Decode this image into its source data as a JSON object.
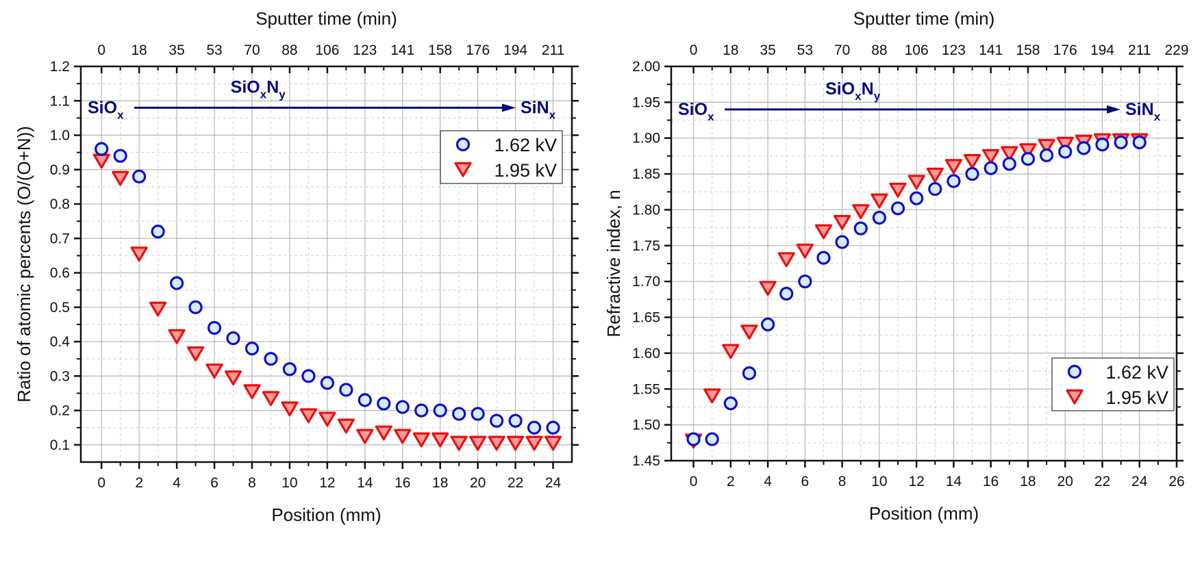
{
  "chart_data": [
    {
      "type": "scatter",
      "title": "",
      "xlabel": "Position (mm)",
      "ylabel": "Ratio of atomic percents (O/(O+N))",
      "x2label": "Sputter time (min)",
      "xlim": [
        -1.1,
        25.0
      ],
      "ylim": [
        0.05,
        1.2
      ],
      "xticks": [
        0,
        2,
        4,
        6,
        8,
        10,
        12,
        14,
        16,
        18,
        20,
        22,
        24
      ],
      "yticks": [
        "0.1",
        "0.2",
        "0.3",
        "0.4",
        "0.5",
        "0.6",
        "0.7",
        "0.8",
        "0.9",
        "1.0",
        "1.1",
        "1.2"
      ],
      "x2ticks": [
        "0",
        "18",
        "35",
        "53",
        "70",
        "88",
        "106",
        "123",
        "141",
        "158",
        "176",
        "194",
        "211"
      ],
      "grid": true,
      "legend_position": "top-right",
      "annotation": {
        "start": {
          "base": "SiO",
          "sub": "x"
        },
        "middle": {
          "base1": "SiO",
          "sub1": "x",
          "base2": "N",
          "sub2": "y"
        },
        "end": {
          "base": "SiN",
          "sub": "x"
        },
        "y": 1.08
      },
      "x": [
        0,
        1,
        2,
        3,
        4,
        5,
        6,
        7,
        8,
        9,
        10,
        11,
        12,
        13,
        14,
        15,
        16,
        17,
        18,
        19,
        20,
        21,
        22,
        23,
        24
      ],
      "series": [
        {
          "name": "1.62 kV",
          "marker": "circle",
          "values": [
            0.96,
            0.94,
            0.88,
            0.72,
            0.57,
            0.5,
            0.44,
            0.41,
            0.38,
            0.35,
            0.32,
            0.3,
            0.28,
            0.26,
            0.23,
            0.22,
            0.21,
            0.2,
            0.2,
            0.19,
            0.19,
            0.17,
            0.17,
            0.15,
            0.15
          ]
        },
        {
          "name": "1.95 kV",
          "marker": "triangle-down",
          "values": [
            0.93,
            0.88,
            0.66,
            0.5,
            0.42,
            0.37,
            0.32,
            0.3,
            0.26,
            0.24,
            0.21,
            0.19,
            0.18,
            0.16,
            0.13,
            0.14,
            0.13,
            0.12,
            0.12,
            0.11,
            0.11,
            0.11,
            0.11,
            0.11,
            0.11
          ]
        }
      ]
    },
    {
      "type": "scatter",
      "title": "",
      "xlabel": "Position (mm)",
      "ylabel": "Refractive index, n",
      "x2label": "Sputter time (min)",
      "xlim": [
        -1.2,
        26.0
      ],
      "ylim": [
        1.45,
        2.0
      ],
      "xticks": [
        0,
        2,
        4,
        6,
        8,
        10,
        12,
        14,
        16,
        18,
        20,
        22,
        24,
        26
      ],
      "yticks": [
        "1.45",
        "1.50",
        "1.55",
        "1.60",
        "1.65",
        "1.70",
        "1.75",
        "1.80",
        "1.85",
        "1.90",
        "1.95",
        "2.00"
      ],
      "x2ticks": [
        "0",
        "18",
        "35",
        "53",
        "70",
        "88",
        "106",
        "123",
        "141",
        "158",
        "176",
        "194",
        "211",
        "229"
      ],
      "grid": true,
      "legend_position": "bottom-right",
      "annotation": {
        "start": {
          "base": "SiO",
          "sub": "x"
        },
        "middle": {
          "base1": "SiO",
          "sub1": "x",
          "base2": "N",
          "sub2": "y"
        },
        "end": {
          "base": "SiN",
          "sub": "x"
        },
        "y": 1.94
      },
      "x": [
        0,
        1,
        2,
        3,
        4,
        5,
        6,
        7,
        8,
        9,
        10,
        11,
        12,
        13,
        14,
        15,
        16,
        17,
        18,
        19,
        20,
        21,
        22,
        23,
        24
      ],
      "series": [
        {
          "name": "1.62 kV",
          "marker": "circle",
          "values": [
            1.48,
            1.48,
            1.53,
            1.572,
            1.64,
            1.683,
            1.7,
            1.733,
            1.755,
            1.774,
            1.789,
            1.802,
            1.816,
            1.829,
            1.84,
            1.85,
            1.858,
            1.864,
            1.871,
            1.876,
            1.881,
            1.886,
            1.891,
            1.894,
            1.894
          ]
        },
        {
          "name": "1.95 kV",
          "marker": "triangle-down",
          "values": [
            1.48,
            1.543,
            1.605,
            1.632,
            1.693,
            1.733,
            1.745,
            1.772,
            1.785,
            1.8,
            1.815,
            1.83,
            1.841,
            1.851,
            1.863,
            1.87,
            1.877,
            1.881,
            1.885,
            1.891,
            1.894,
            1.897,
            1.899,
            1.899,
            1.899
          ]
        }
      ]
    }
  ],
  "colors": {
    "series1_stroke": "#1010c8",
    "series1_fill": "#d6eaf8",
    "series2_stroke": "#e81010",
    "series2_fill": "#f59a9a",
    "annotation": "#0a0a7a",
    "grid_major": "#b5b5b5",
    "grid_minor": "#d0d0d0"
  }
}
